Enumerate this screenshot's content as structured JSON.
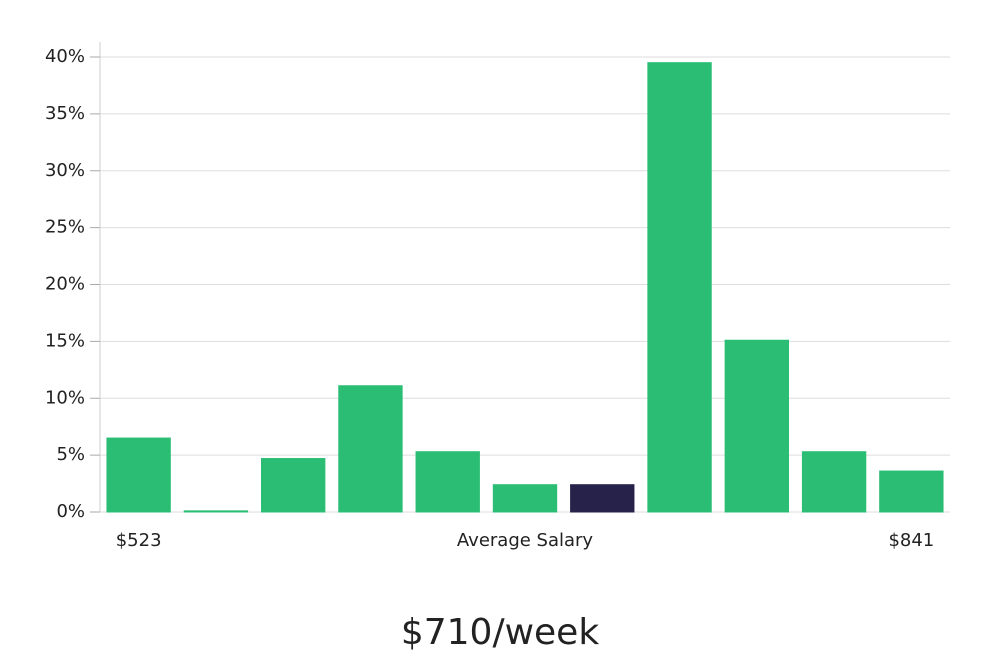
{
  "chart_data": {
    "type": "bar",
    "title": "$710/week",
    "xlabel": "Average Salary",
    "categories": [
      "$523",
      null,
      null,
      null,
      null,
      null,
      null,
      null,
      null,
      null,
      "$841"
    ],
    "values": [
      6.5,
      0.1,
      4.7,
      11.1,
      5.3,
      2.4,
      2.4,
      39.5,
      15.1,
      5.3,
      3.6
    ],
    "colors": [
      "#2bbd74",
      "#2bbd74",
      "#2bbd74",
      "#2bbd74",
      "#2bbd74",
      "#2bbd74",
      "#26224a",
      "#2bbd74",
      "#2bbd74",
      "#2bbd74",
      "#2bbd74"
    ],
    "ylim": [
      0,
      40
    ],
    "yticks": [
      {
        "value": 0,
        "label": "0%"
      },
      {
        "value": 5,
        "label": "5%"
      },
      {
        "value": 10,
        "label": "10%"
      },
      {
        "value": 15,
        "label": "15%"
      },
      {
        "value": 20,
        "label": "20%"
      },
      {
        "value": 25,
        "label": "25%"
      },
      {
        "value": 30,
        "label": "30%"
      },
      {
        "value": 35,
        "label": "35%"
      },
      {
        "value": 40,
        "label": "40%"
      }
    ],
    "grid": true
  }
}
